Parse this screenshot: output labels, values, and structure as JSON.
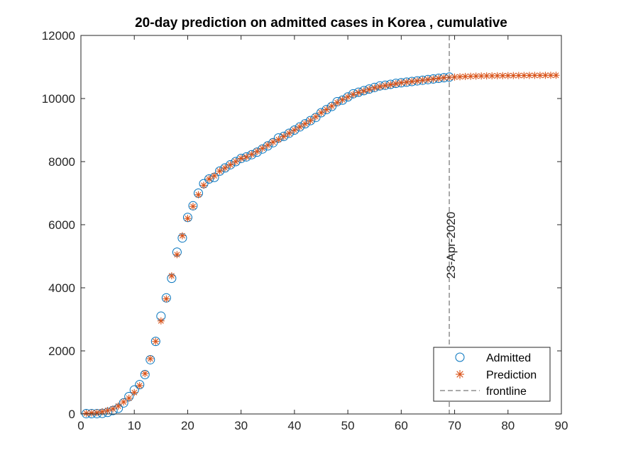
{
  "chart_data": {
    "type": "scatter",
    "title": "20-day prediction on admitted cases in Korea , cumulative",
    "xlabel": "",
    "ylabel": "",
    "xlim": [
      0,
      90
    ],
    "ylim": [
      0,
      12000
    ],
    "xticks": [
      0,
      10,
      20,
      30,
      40,
      50,
      60,
      70,
      80,
      90
    ],
    "yticks": [
      0,
      2000,
      4000,
      6000,
      8000,
      10000,
      12000
    ],
    "grid": false,
    "legend_position": "bottom-right",
    "colors": {
      "admitted": "#0072BD",
      "prediction": "#D95319",
      "frontline": "#555555"
    },
    "series": [
      {
        "name": "Admitted",
        "marker": "circle",
        "x": [
          1,
          2,
          3,
          4,
          5,
          6,
          7,
          8,
          9,
          10,
          11,
          12,
          13,
          14,
          15,
          16,
          17,
          18,
          19,
          20,
          21,
          22,
          23,
          24,
          25,
          26,
          27,
          28,
          29,
          30,
          31,
          32,
          33,
          34,
          35,
          36,
          37,
          38,
          39,
          40,
          41,
          42,
          43,
          44,
          45,
          46,
          47,
          48,
          49,
          50,
          51,
          52,
          53,
          54,
          55,
          56,
          57,
          58,
          59,
          60,
          61,
          62,
          63,
          64,
          65,
          66,
          67,
          68,
          69
        ],
        "values": [
          10,
          10,
          10,
          20,
          50,
          110,
          180,
          350,
          550,
          760,
          930,
          1250,
          1720,
          2300,
          3100,
          3680,
          4300,
          5130,
          5580,
          6230,
          6600,
          7000,
          7300,
          7450,
          7500,
          7700,
          7800,
          7900,
          8000,
          8100,
          8150,
          8220,
          8300,
          8400,
          8500,
          8600,
          8750,
          8800,
          8900,
          9000,
          9100,
          9200,
          9300,
          9400,
          9550,
          9650,
          9750,
          9900,
          9950,
          10050,
          10150,
          10200,
          10250,
          10300,
          10350,
          10400,
          10420,
          10450,
          10480,
          10500,
          10520,
          10540,
          10560,
          10580,
          10600,
          10620,
          10640,
          10660,
          10680
        ]
      },
      {
        "name": "Prediction",
        "marker": "asterisk",
        "x": [
          1,
          2,
          3,
          4,
          5,
          6,
          7,
          8,
          9,
          10,
          11,
          12,
          13,
          14,
          15,
          16,
          17,
          18,
          19,
          20,
          21,
          22,
          23,
          24,
          25,
          26,
          27,
          28,
          29,
          30,
          31,
          32,
          33,
          34,
          35,
          36,
          37,
          38,
          39,
          40,
          41,
          42,
          43,
          44,
          45,
          46,
          47,
          48,
          49,
          50,
          51,
          52,
          53,
          54,
          55,
          56,
          57,
          58,
          59,
          60,
          61,
          62,
          63,
          64,
          65,
          66,
          67,
          68,
          69,
          70,
          71,
          72,
          73,
          74,
          75,
          76,
          77,
          78,
          79,
          80,
          81,
          82,
          83,
          84,
          85,
          86,
          87,
          88,
          89
        ],
        "values": [
          20,
          30,
          40,
          70,
          110,
          160,
          250,
          380,
          500,
          680,
          900,
          1280,
          1750,
          2300,
          2950,
          3650,
          4380,
          5050,
          5650,
          6200,
          6580,
          6950,
          7250,
          7450,
          7550,
          7700,
          7800,
          7900,
          8000,
          8100,
          8150,
          8230,
          8320,
          8420,
          8520,
          8620,
          8700,
          8800,
          8900,
          9000,
          9100,
          9200,
          9300,
          9420,
          9550,
          9650,
          9760,
          9870,
          9960,
          10050,
          10130,
          10190,
          10240,
          10290,
          10340,
          10380,
          10410,
          10440,
          10470,
          10500,
          10520,
          10540,
          10560,
          10580,
          10600,
          10620,
          10640,
          10660,
          10670,
          10680,
          10690,
          10700,
          10705,
          10710,
          10715,
          10718,
          10720,
          10722,
          10724,
          10726,
          10728,
          10730,
          10731,
          10732,
          10733,
          10734,
          10735,
          10736,
          10737
        ]
      }
    ],
    "frontline": {
      "name": "frontline",
      "x": 69,
      "label": "23-Apr-2020"
    }
  }
}
